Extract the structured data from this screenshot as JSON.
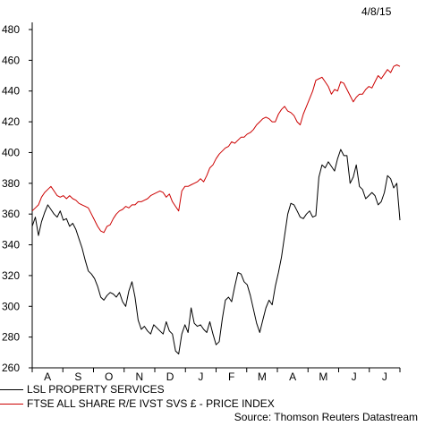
{
  "date_label": "4/8/15",
  "source": "Source: Thomson Reuters Datastream",
  "chart_data": {
    "type": "line",
    "ylim": [
      260,
      480
    ],
    "y_ticks": [
      260,
      280,
      300,
      320,
      340,
      360,
      380,
      400,
      420,
      440,
      460,
      480
    ],
    "x_ticks": [
      "A",
      "S",
      "O",
      "N",
      "D",
      "J",
      "F",
      "M",
      "A",
      "M",
      "J",
      "J"
    ],
    "series": [
      {
        "name": "LSL PROPERTY SERVICES",
        "color": "#000000",
        "values": [
          352,
          358,
          346,
          355,
          361,
          366,
          363,
          360,
          358,
          362,
          356,
          357,
          352,
          354,
          350,
          344,
          338,
          330,
          323,
          321,
          318,
          313,
          306,
          304,
          307,
          309,
          308,
          306,
          309,
          303,
          300,
          310,
          316,
          306,
          291,
          285,
          287,
          284,
          282,
          288,
          286,
          284,
          282,
          290,
          284,
          282,
          271,
          269,
          282,
          288,
          283,
          299,
          289,
          287,
          288,
          285,
          283,
          290,
          282,
          275,
          277,
          292,
          304,
          306,
          303,
          313,
          322,
          321,
          316,
          314,
          307,
          298,
          289,
          283,
          291,
          299,
          304,
          301,
          313,
          322,
          332,
          346,
          360,
          367,
          366,
          362,
          358,
          357,
          360,
          362,
          358,
          359,
          384,
          392,
          390,
          394,
          391,
          388,
          396,
          402,
          398,
          398,
          380,
          384,
          392,
          378,
          376,
          370,
          372,
          374,
          372,
          366,
          368,
          374,
          385,
          383,
          377,
          380,
          356
        ]
      },
      {
        "name": "FTSE ALL SHARE R/E IVST SVS £ - PRICE INDEX",
        "color": "#cc0000",
        "values": [
          362,
          364,
          366,
          371,
          374,
          376,
          378,
          375,
          372,
          371,
          372,
          370,
          372,
          370,
          369,
          367,
          366,
          365,
          364,
          360,
          356,
          352,
          349,
          348,
          352,
          353,
          357,
          360,
          362,
          363,
          365,
          364,
          366,
          366,
          368,
          368,
          369,
          370,
          372,
          373,
          374,
          375,
          374,
          371,
          373,
          368,
          365,
          362,
          375,
          378,
          378,
          379,
          380,
          381,
          383,
          381,
          385,
          390,
          392,
          396,
          399,
          401,
          403,
          404,
          407,
          406,
          408,
          410,
          410,
          412,
          413,
          415,
          418,
          420,
          422,
          423,
          422,
          420,
          420,
          425,
          428,
          430,
          427,
          426,
          424,
          420,
          418,
          425,
          430,
          435,
          440,
          447,
          448,
          449,
          446,
          443,
          438,
          441,
          440,
          446,
          445,
          441,
          437,
          433,
          436,
          438,
          438,
          441,
          443,
          442,
          446,
          450,
          448,
          451,
          454,
          452,
          456,
          457,
          456
        ]
      }
    ]
  },
  "legend": {
    "items": [
      {
        "label": "LSL PROPERTY SERVICES",
        "color": "#000000"
      },
      {
        "label": "FTSE ALL SHARE R/E IVST SVS £ - PRICE INDEX",
        "color": "#cc0000"
      }
    ]
  }
}
